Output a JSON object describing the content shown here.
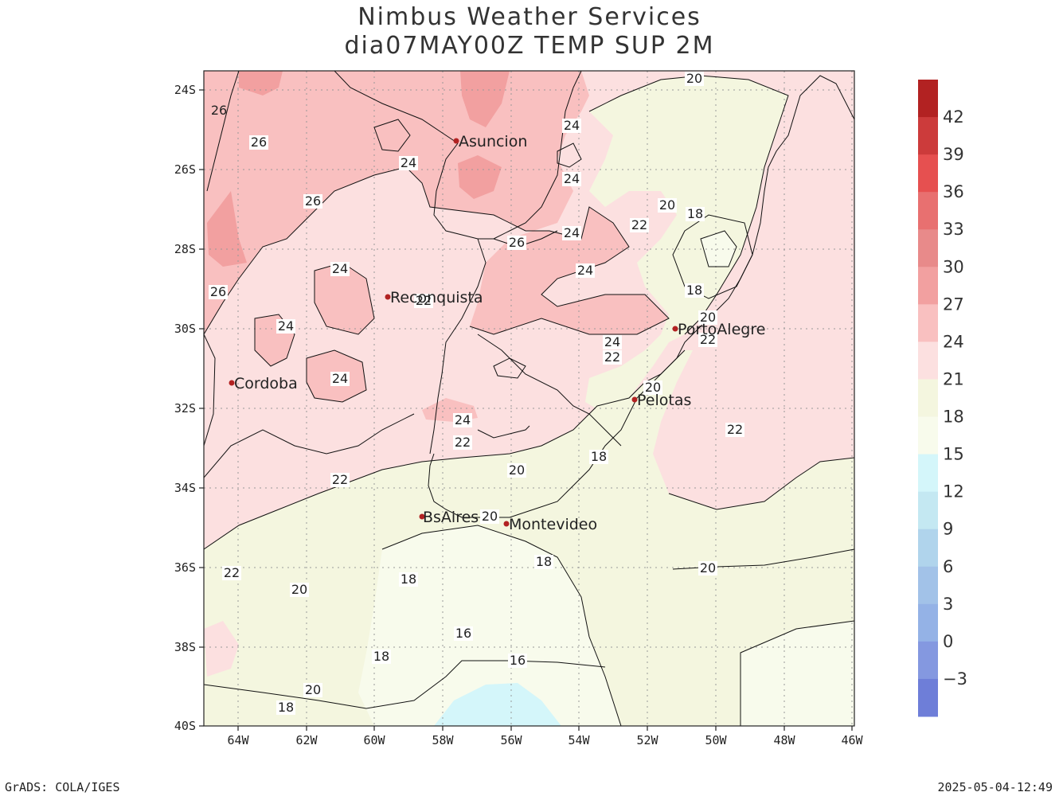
{
  "title": {
    "line1": "Nimbus Weather Services",
    "line2": "dia07MAY00Z TEMP SUP 2M"
  },
  "axes": {
    "lat_labels": [
      "24S",
      "26S",
      "28S",
      "30S",
      "32S",
      "34S",
      "36S",
      "38S",
      "40S"
    ],
    "lon_labels": [
      "64W",
      "62W",
      "60W",
      "58W",
      "56W",
      "54W",
      "52W",
      "50W",
      "48W",
      "46W"
    ]
  },
  "colorbar": {
    "labels": [
      "42",
      "39",
      "36",
      "33",
      "30",
      "27",
      "24",
      "21",
      "18",
      "15",
      "12",
      "9",
      "6",
      "3",
      "0",
      "−3"
    ],
    "colors": [
      "#b22222",
      "#cc3b3b",
      "#e65050",
      "#e87070",
      "#e88a8a",
      "#f2a0a0",
      "#f9c0c0",
      "#fce0e0",
      "#f4f6df",
      "#f8fbec",
      "#d4f6fa",
      "#c4e8f2",
      "#b0d4ec",
      "#a2c2e8",
      "#94b2e6",
      "#8498e0",
      "#6e7ed8"
    ]
  },
  "cities": [
    {
      "name": "Asuncion"
    },
    {
      "name": "Reconquista"
    },
    {
      "name": "Cordoba"
    },
    {
      "name": "PortoAlegre"
    },
    {
      "name": "Pelotas"
    },
    {
      "name": "BsAires"
    },
    {
      "name": "Montevideo"
    }
  ],
  "contour_labels": [
    "20",
    "26",
    "24",
    "24",
    "24",
    "26",
    "26",
    "24",
    "20",
    "18",
    "22",
    "24",
    "26",
    "24",
    "24",
    "26",
    "24",
    "22",
    "18",
    "20",
    "24",
    "22",
    "24",
    "22",
    "24",
    "20",
    "24",
    "22",
    "22",
    "18",
    "22",
    "20",
    "20",
    "20",
    "18",
    "22",
    "20",
    "18",
    "16",
    "18",
    "16",
    "20",
    "18"
  ],
  "footer": {
    "left": "GrADS: COLA/IGES",
    "right": "2025-05-04-12:49"
  }
}
